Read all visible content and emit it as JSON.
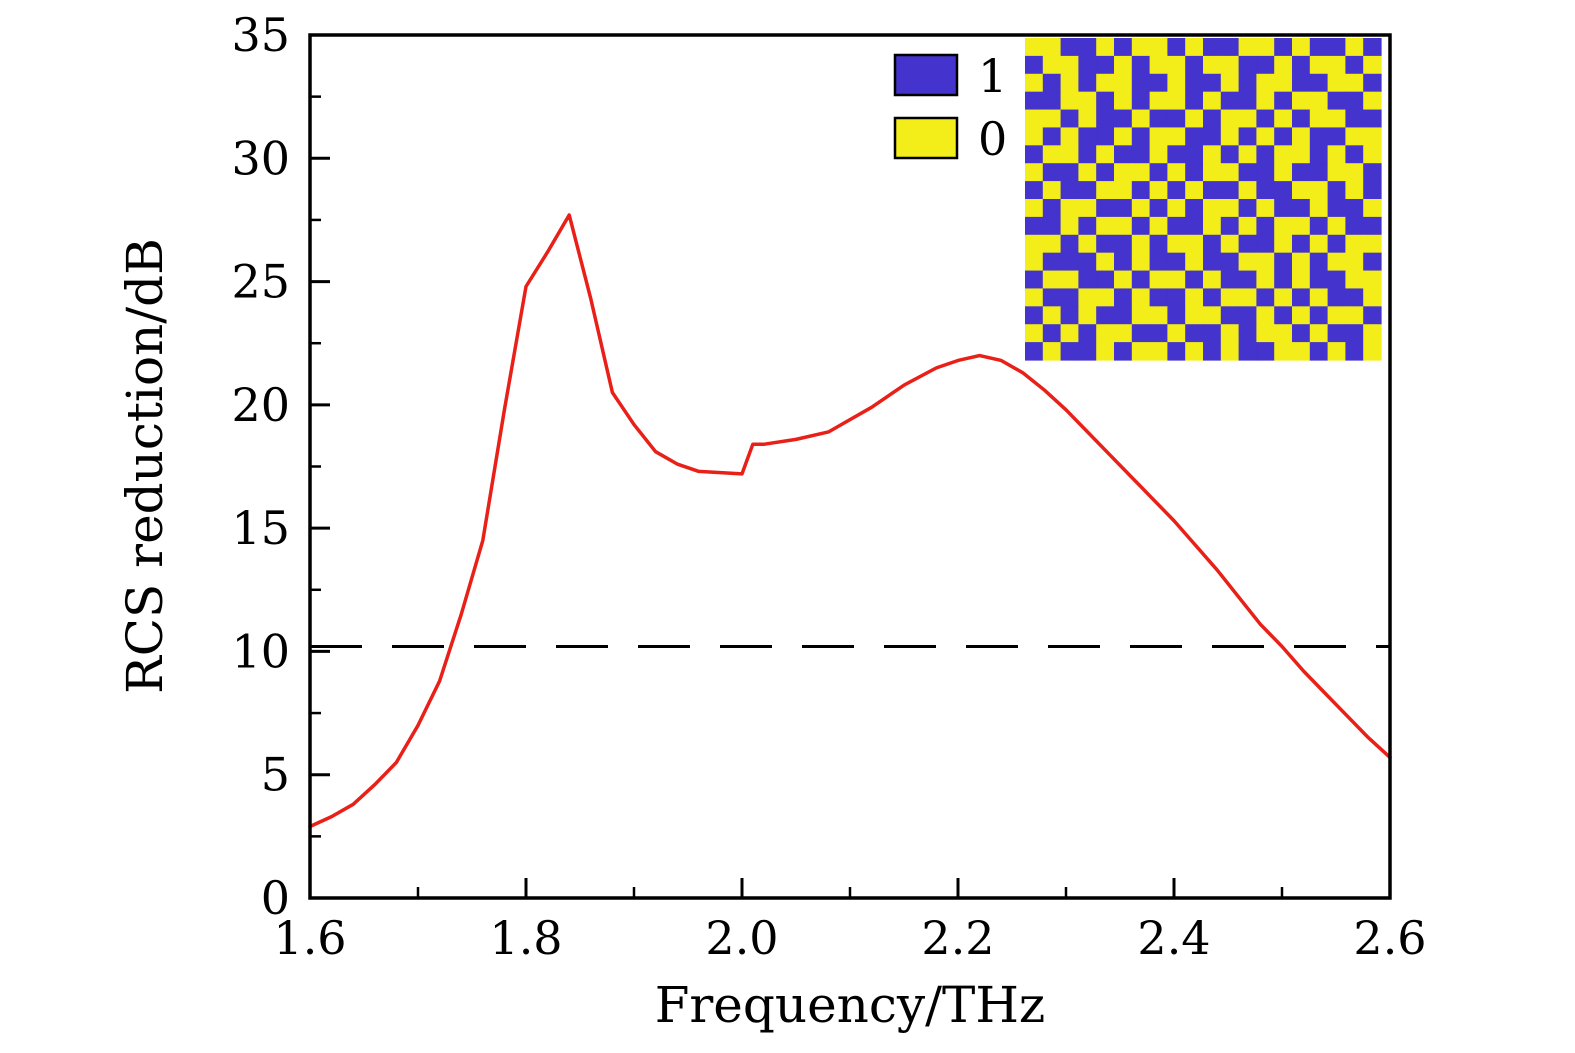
{
  "figure": {
    "xlabel": "Frequency/THz",
    "ylabel": "RCS reduction/dB"
  },
  "legend": {
    "items": [
      {
        "label": "1",
        "color": "#4433cc"
      },
      {
        "label": "0",
        "color": "#f3ee19"
      }
    ]
  },
  "chart_data": {
    "type": "line",
    "title": "",
    "xlabel": "Frequency/THz",
    "ylabel": "RCS reduction/dB",
    "xlim": [
      1.6,
      2.6
    ],
    "ylim": [
      0,
      35
    ],
    "grid": false,
    "legend_position": "upper-center-right",
    "x_ticks": [
      1.6,
      1.8,
      2.0,
      2.2,
      2.4,
      2.6
    ],
    "x_tick_labels": [
      "1.6",
      "1.8",
      "2.0",
      "2.2",
      "2.4",
      "2.6"
    ],
    "x_minor_ticks": [
      1.7,
      1.9,
      2.1,
      2.3,
      2.5
    ],
    "y_ticks": [
      0,
      5,
      10,
      15,
      20,
      25,
      30,
      35
    ],
    "y_tick_labels": [
      "0",
      "5",
      "10",
      "15",
      "20",
      "25",
      "30",
      "35"
    ],
    "y_minor_ticks": [
      2.5,
      7.5,
      12.5,
      17.5,
      22.5,
      27.5,
      32.5
    ],
    "series": [
      {
        "name": "RCS reduction",
        "color": "#e82018",
        "x": [
          1.6,
          1.62,
          1.64,
          1.66,
          1.68,
          1.7,
          1.72,
          1.74,
          1.76,
          1.78,
          1.8,
          1.82,
          1.84,
          1.86,
          1.88,
          1.9,
          1.92,
          1.94,
          1.96,
          1.98,
          2.0,
          2.01,
          2.02,
          2.05,
          2.08,
          2.1,
          2.12,
          2.15,
          2.18,
          2.2,
          2.22,
          2.24,
          2.26,
          2.28,
          2.3,
          2.32,
          2.34,
          2.36,
          2.38,
          2.4,
          2.42,
          2.44,
          2.46,
          2.48,
          2.5,
          2.52,
          2.54,
          2.56,
          2.58,
          2.6
        ],
        "y": [
          2.9,
          3.3,
          3.8,
          4.6,
          5.5,
          7.0,
          8.8,
          11.5,
          14.5,
          19.8,
          24.8,
          26.2,
          27.7,
          24.3,
          20.5,
          19.2,
          18.1,
          17.6,
          17.3,
          17.25,
          17.2,
          18.4,
          18.4,
          18.6,
          18.9,
          19.4,
          19.9,
          20.8,
          21.5,
          21.8,
          22.0,
          21.8,
          21.3,
          20.6,
          19.8,
          18.9,
          18.0,
          17.1,
          16.2,
          15.3,
          14.3,
          13.3,
          12.2,
          11.1,
          10.2,
          9.2,
          8.3,
          7.4,
          6.5,
          5.7
        ]
      }
    ],
    "reference_line": {
      "y": 10.2,
      "style": "dashed",
      "color": "#000000"
    },
    "inset": {
      "description": "random binary coding metasurface pattern",
      "colors": {
        "1": "#4433cc",
        "0": "#f3ee19"
      },
      "rows": [
        "00110100101100101101",
        "10011010010011010010",
        "01010011011010011001",
        "11001010010110100110",
        "00101101101001010011",
        "01011010011010101100",
        "10010110110101001010",
        "01101001010011011001",
        "10110010101101100101",
        "01001101010010110110",
        "11010010110101001011",
        "00101101001011010100",
        "01110101101100101001",
        "10011010010110101100",
        "01100101101001010110",
        "10101100100110101001",
        "01010011011010010110",
        "10110100101011001010"
      ]
    }
  }
}
